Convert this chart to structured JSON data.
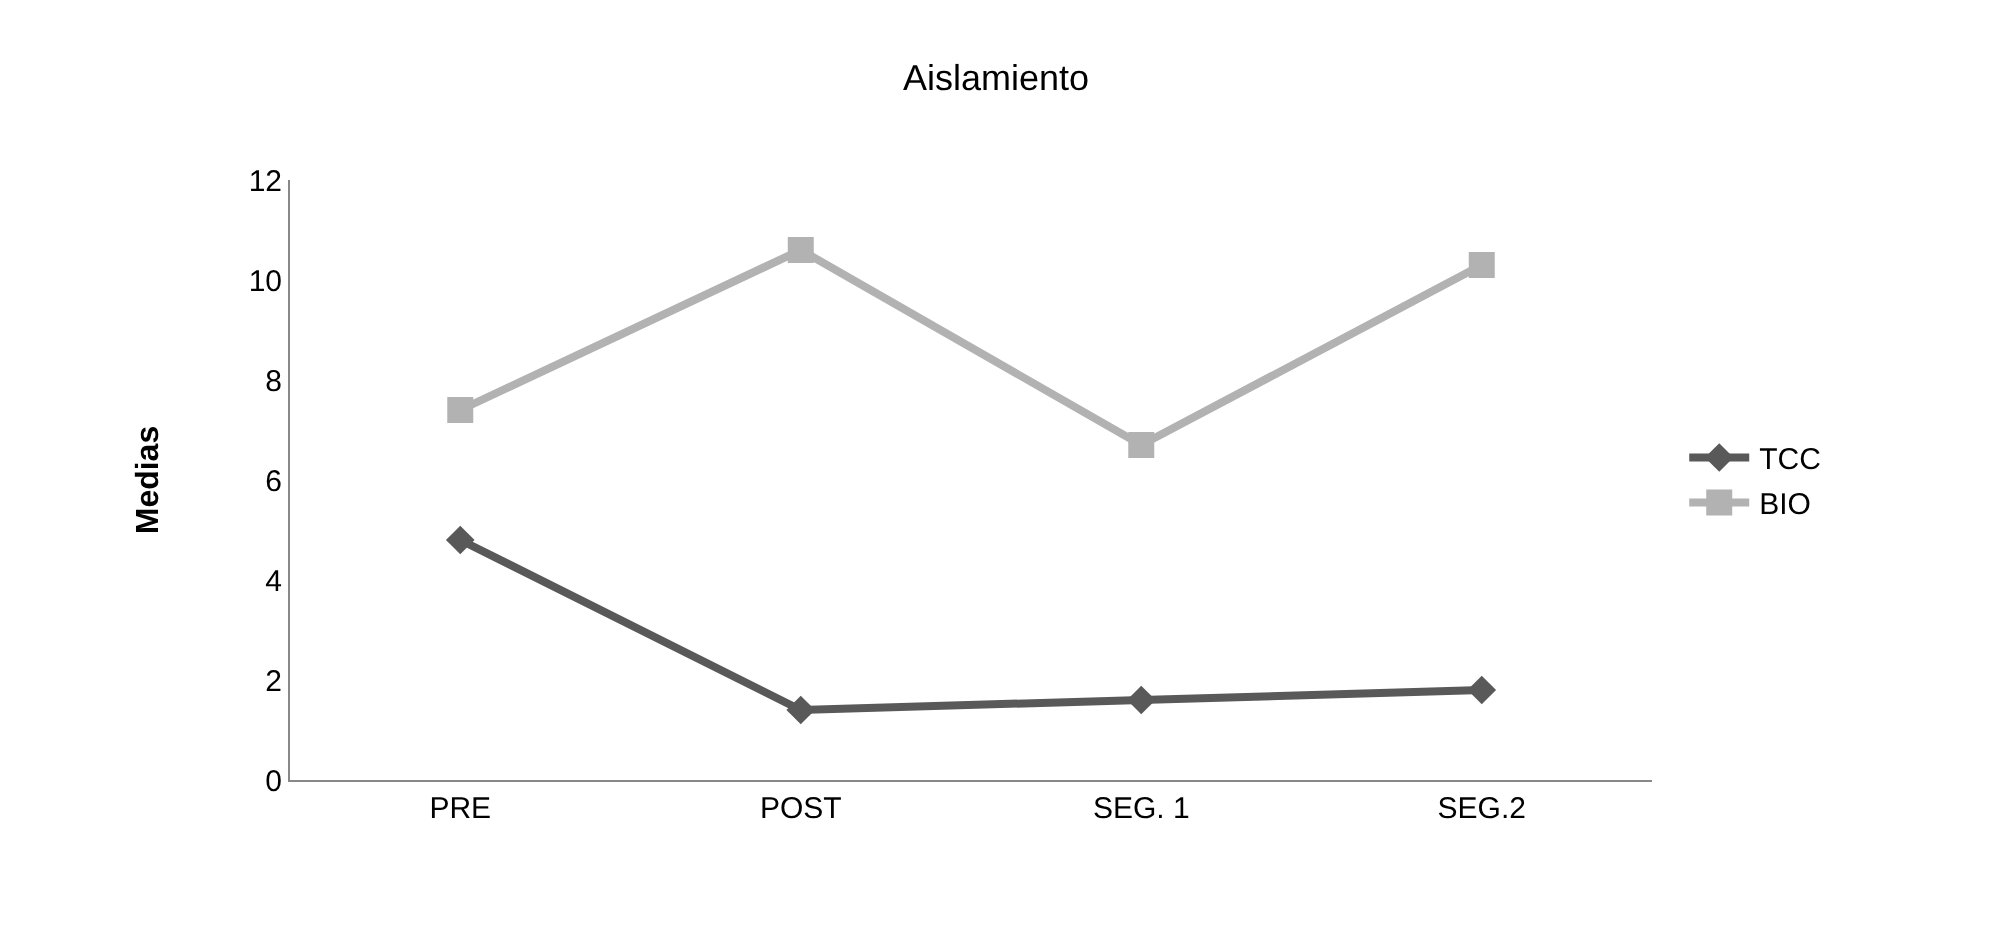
{
  "chart_data": {
    "type": "line",
    "title": "Aislamiento",
    "ylabel": "Medias",
    "categories": [
      "PRE",
      "POST",
      "SEG. 1",
      "SEG.2"
    ],
    "series": [
      {
        "name": "TCC",
        "color": "#595959",
        "marker": "diamond",
        "values": [
          4.8,
          1.4,
          1.6,
          1.8
        ]
      },
      {
        "name": "BIO",
        "color": "#b2b2b2",
        "marker": "square",
        "values": [
          7.4,
          10.6,
          6.7,
          10.3
        ]
      }
    ],
    "ylim": [
      0,
      12
    ],
    "yticks": [
      0,
      2,
      4,
      6,
      8,
      10,
      12
    ],
    "grid": false,
    "legend": "right",
    "line_style": "solid"
  }
}
